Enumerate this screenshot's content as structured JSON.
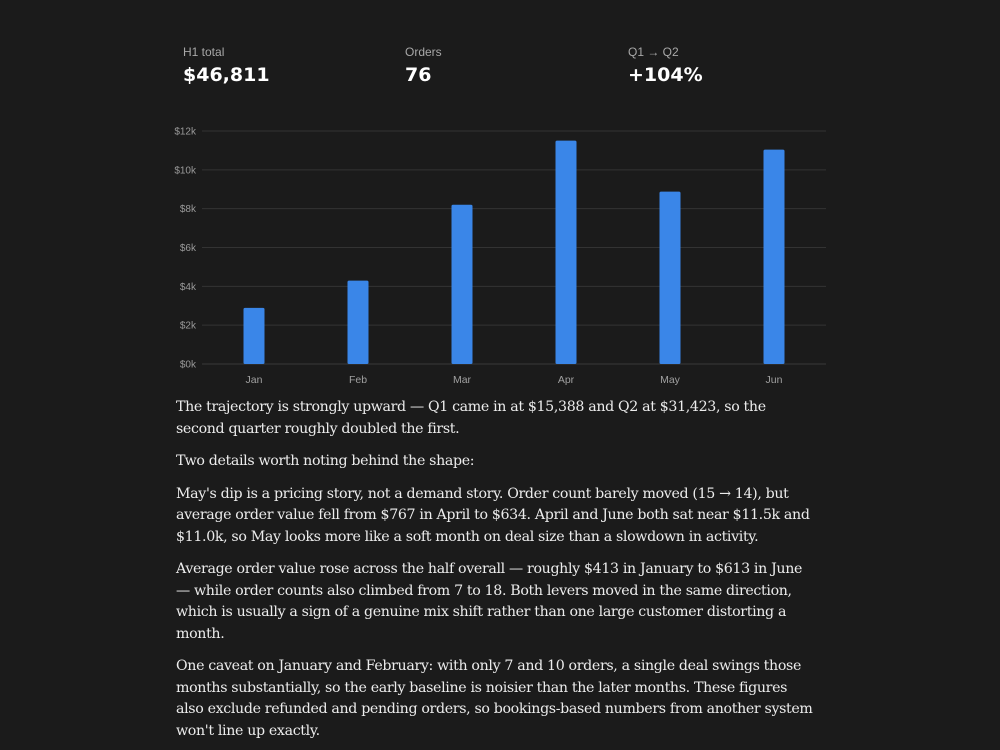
{
  "summary": {
    "stats": [
      {
        "label": "H1 total",
        "value": "$46,811"
      },
      {
        "label": "Orders",
        "value": "76"
      },
      {
        "label": "Q1 → Q2",
        "value": "+104%"
      }
    ]
  },
  "chart_data": {
    "type": "bar",
    "categories": [
      "Jan",
      "Feb",
      "Mar",
      "Apr",
      "May",
      "Jun"
    ],
    "values": [
      2891,
      4297,
      8200,
      11505,
      8875,
      11043
    ],
    "ylim": [
      0,
      12000
    ],
    "y_ticks": [
      0,
      2000,
      4000,
      6000,
      8000,
      10000,
      12000
    ],
    "y_tick_labels": [
      "$0k",
      "$2k",
      "$4k",
      "$6k",
      "$8k",
      "$10k",
      "$12k"
    ],
    "grid": true,
    "legend": "none",
    "colors": {
      "bar": "#3a86e8",
      "grid": "#333333",
      "axis": "#3a3a3a"
    }
  },
  "commentary": {
    "paragraphs": [
      "The trajectory is strongly upward — Q1 came in at $15,388 and Q2 at $31,423, so the second quarter roughly doubled the first.",
      "Two details worth noting behind the shape:",
      "May's dip is a pricing story, not a demand story. Order count barely moved (15 → 14), but average order value fell from $767 in April to $634. April and June both sat near $11.5k and $11.0k, so May looks more like a soft month on deal size than a slowdown in activity.",
      "Average order value rose across the half overall — roughly $413 in January to $613 in June — while order counts also climbed from 7 to 18. Both levers moved in the same direction, which is usually a sign of a genuine mix shift rather than one large customer distorting a month.",
      "One caveat on January and February: with only 7 and 10 orders, a single deal swings those months substantially, so the early baseline is noisier than the later months. These figures also exclude refunded and pending orders, so bookings-based numbers from another system won't line up exactly."
    ]
  }
}
